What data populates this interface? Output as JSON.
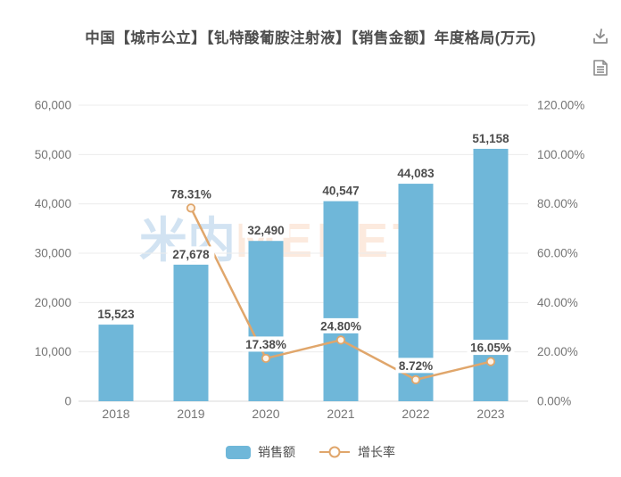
{
  "header": {
    "title": "中国【城市公立】【钆特酸葡胺注射液】【销售金额】年度格局(万元)"
  },
  "toolbar": {
    "icons": [
      {
        "name": "download-icon"
      },
      {
        "name": "report-icon"
      }
    ]
  },
  "watermark": {
    "cn": "米内",
    "en": "MENET"
  },
  "legend": {
    "items": [
      {
        "label": "销售额",
        "type": "bar"
      },
      {
        "label": "增长率",
        "type": "line"
      }
    ]
  },
  "chart_data": {
    "type": "bar",
    "combo": "bar+line",
    "title": "中国【城市公立】【钆特酸葡胺注射液】【销售金额】年度格局(万元)",
    "categories": [
      "2018",
      "2019",
      "2020",
      "2021",
      "2022",
      "2023"
    ],
    "series": [
      {
        "name": "销售额",
        "type": "bar",
        "axis": "left",
        "values": [
          15523,
          27678,
          32490,
          40547,
          44083,
          51158
        ],
        "labels": [
          "15,523",
          "27,678",
          "32,490",
          "40,547",
          "44,083",
          "51,158"
        ]
      },
      {
        "name": "增长率",
        "type": "line",
        "axis": "right",
        "values": [
          null,
          78.31,
          17.38,
          24.8,
          8.72,
          16.05
        ],
        "labels": [
          null,
          "78.31%",
          "17.38%",
          "24.80%",
          "8.72%",
          "16.05%"
        ]
      }
    ],
    "left_axis": {
      "min": 0,
      "max": 60000,
      "step": 10000,
      "ticks": [
        "0",
        "10,000",
        "20,000",
        "30,000",
        "40,000",
        "50,000",
        "60,000"
      ]
    },
    "right_axis": {
      "min": 0,
      "max": 120,
      "step": 20,
      "ticks": [
        "0.00%",
        "20.00%",
        "40.00%",
        "60.00%",
        "80.00%",
        "100.00%",
        "120.00%"
      ]
    },
    "grid": true,
    "legend_position": "bottom",
    "colors": {
      "bar": "#6fb7d9",
      "line": "#e0a66b",
      "marker_fill": "#fdf3e8",
      "label": "#4d4d4d",
      "axis_text": "#757575",
      "grid": "#ececec",
      "axis_line": "#d9d9d9"
    }
  }
}
